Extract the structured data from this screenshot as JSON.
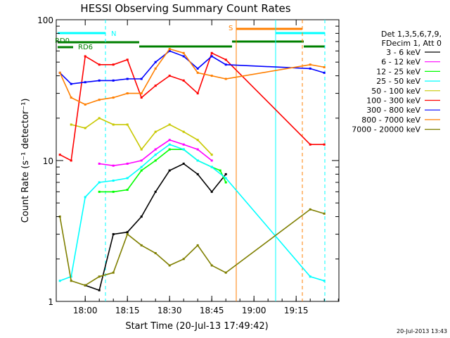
{
  "chart_data": {
    "type": "line",
    "title": "HESSI Observing Summary Count Rates",
    "xlabel": "Start Time (20-Jul-13 17:49:42)",
    "ylabel": "Count Rate (s⁻¹ detector⁻¹)",
    "yscale": "log",
    "ylim": [
      1,
      100
    ],
    "xlim": [
      "17:49:42",
      "20:49:42"
    ],
    "x_tick_labels": [
      "18:00",
      "18:15",
      "18:30",
      "18:45",
      "19:00",
      "19:15"
    ],
    "y_tick_labels": [
      "1",
      "10",
      "100"
    ],
    "legend_header": [
      "Det 1,3,5,6,7,9,",
      "FDecim 1, Att 0"
    ],
    "legend_position": "right",
    "series": [
      {
        "name": "3 - 6 keV",
        "color": "#000000",
        "x": [
          "17:51",
          "17:55",
          "18:00",
          "18:05",
          "18:10",
          "18:15",
          "18:20",
          "18:25",
          "18:30",
          "18:35",
          "18:40",
          "18:45",
          "18:50",
          "19:20",
          "19:25"
        ],
        "y": [
          null,
          null,
          1.3,
          1.2,
          3.0,
          3.1,
          4.0,
          6.0,
          8.5,
          9.5,
          8.0,
          6.0,
          8.0,
          null,
          null
        ]
      },
      {
        "name": "6 - 12 keV",
        "color": "#ff00ff",
        "x": [
          "18:05",
          "18:10",
          "18:15",
          "18:20",
          "18:25",
          "18:30",
          "18:35",
          "18:40",
          "18:45"
        ],
        "y": [
          9.5,
          9.2,
          9.5,
          10,
          12,
          14,
          13,
          12,
          10
        ]
      },
      {
        "name": "12 - 25 keV",
        "color": "#00ff00",
        "x": [
          "18:05",
          "18:10",
          "18:15",
          "18:20",
          "18:25",
          "18:30",
          "18:35",
          "18:40",
          "18:45",
          "18:48",
          "18:50"
        ],
        "y": [
          6.0,
          6.0,
          6.2,
          8.5,
          10,
          12,
          12,
          10,
          9,
          8.5,
          7
        ]
      },
      {
        "name": "25 - 50 keV",
        "color": "#00ffff",
        "x": [
          "17:51",
          "17:55",
          "18:00",
          "18:05",
          "18:10",
          "18:15",
          "18:20",
          "18:25",
          "18:30",
          "18:35",
          "18:40",
          "18:45",
          "18:50",
          "19:20",
          "19:25"
        ],
        "y": [
          1.4,
          1.5,
          5.5,
          7.0,
          7.2,
          7.5,
          9.0,
          11,
          13,
          12,
          10,
          9,
          7.5,
          1.5,
          1.4
        ]
      },
      {
        "name": "50 - 100 keV",
        "color": "#c8c800",
        "x": [
          "17:55",
          "18:00",
          "18:05",
          "18:10",
          "18:15",
          "18:20",
          "18:25",
          "18:30",
          "18:35",
          "18:40",
          "18:45"
        ],
        "y": [
          18,
          17,
          20,
          18,
          18,
          12,
          16,
          18,
          16,
          14,
          11
        ]
      },
      {
        "name": "100 - 300 keV",
        "color": "#ff0000",
        "x": [
          "17:51",
          "17:55",
          "18:00",
          "18:05",
          "18:10",
          "18:15",
          "18:20",
          "18:25",
          "18:30",
          "18:35",
          "18:40",
          "18:45",
          "18:50",
          "19:20",
          "19:25"
        ],
        "y": [
          11,
          10,
          55,
          48,
          48,
          52,
          28,
          34,
          40,
          37,
          30,
          58,
          52,
          13,
          13
        ]
      },
      {
        "name": "300 - 800 keV",
        "color": "#0000ff",
        "x": [
          "17:51",
          "17:55",
          "18:00",
          "18:05",
          "18:10",
          "18:15",
          "18:20",
          "18:25",
          "18:30",
          "18:35",
          "18:40",
          "18:45",
          "18:50",
          "19:20",
          "19:25"
        ],
        "y": [
          42,
          35,
          36,
          37,
          37,
          38,
          38,
          50,
          60,
          55,
          45,
          55,
          48,
          45,
          42
        ]
      },
      {
        "name": "800 - 7000 keV",
        "color": "#ff7f00",
        "x": [
          "17:51",
          "17:55",
          "18:00",
          "18:05",
          "18:10",
          "18:15",
          "18:20",
          "18:25",
          "18:30",
          "18:35",
          "18:40",
          "18:45",
          "18:50",
          "19:20",
          "19:25"
        ],
        "y": [
          42,
          28,
          25,
          27,
          28,
          30,
          30,
          45,
          62,
          58,
          42,
          40,
          38,
          48,
          46
        ]
      },
      {
        "name": "7000 - 20000 keV",
        "color": "#7f7f00",
        "x": [
          "17:51",
          "17:55",
          "18:00",
          "18:05",
          "18:10",
          "18:15",
          "18:20",
          "18:25",
          "18:30",
          "18:35",
          "18:40",
          "18:45",
          "18:50",
          "19:20",
          "19:25"
        ],
        "y": [
          4.0,
          1.4,
          1.3,
          1.5,
          1.6,
          3.0,
          2.5,
          2.2,
          1.8,
          2.0,
          2.5,
          1.8,
          1.6,
          4.5,
          4.2
        ]
      }
    ],
    "annotations": [
      {
        "text": "N",
        "color": "#00ffff"
      },
      {
        "text": "S",
        "color": "#ff7f00"
      },
      {
        "text": "RD0",
        "color": "#008000"
      },
      {
        "text": "RD6",
        "color": "#008000"
      }
    ]
  },
  "footer": {
    "timestamp": "20-Jul-2013 13:43"
  }
}
